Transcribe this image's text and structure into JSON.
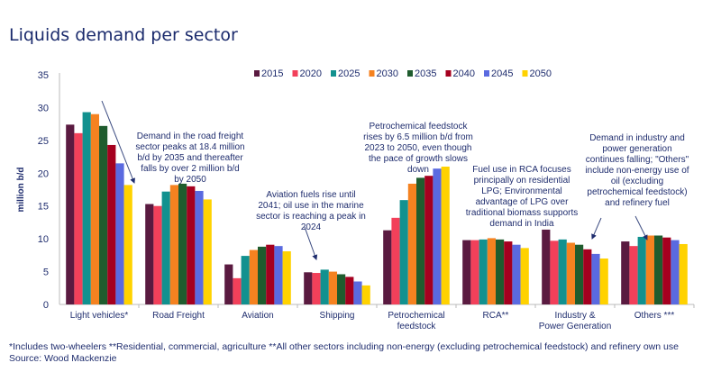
{
  "title": "Liquids demand per sector",
  "footnote": "*Includes two-wheelers **Residential, commercial, agriculture **All other sectors including non-energy (excluding petrochemical feedstock) and refinery own use",
  "source": "Source: Wood Mackenzie",
  "annotations": [
    "Demand in the road freight sector peaks at 18.4 million b/d by 2035 and thereafter falls by over 2 million b/d by 2050",
    "Aviation fuels rise until 2041; oil use in the marine sector is reaching a peak in 2024",
    "Petrochemical feedstock rises by 6.5 million b/d from 2023 to 2050, even though the pace of growth slows down",
    "Fuel use in RCA focuses principally on residential LPG; Environmental advantage of LPG over traditional biomass supports demand in India",
    "Demand in industry and power generation continues falling; \"Others\" include non-energy use of oil (excluding petrochemical feedstock) and refinery fuel"
  ],
  "chart_data": {
    "type": "bar",
    "title": "Liquids demand per sector",
    "ylabel": "million b/d",
    "xlabel": "",
    "ylim": [
      0,
      35
    ],
    "yticks": [
      0,
      5,
      10,
      15,
      20,
      25,
      30,
      35
    ],
    "grid": false,
    "legend": "top",
    "categories": [
      "Light vehicles*",
      "Road Freight",
      "Aviation",
      "Shipping",
      "Petrochemical feedstock",
      "RCA**",
      "Industry & Power Generation",
      "Others ***"
    ],
    "series": [
      {
        "name": "2015",
        "color": "#5a1a40",
        "values": [
          27.4,
          15.3,
          6.1,
          4.9,
          11.3,
          9.8,
          11.4,
          9.6
        ]
      },
      {
        "name": "2020",
        "color": "#f2405a",
        "values": [
          26.1,
          15.0,
          4.0,
          4.8,
          13.2,
          9.8,
          9.7,
          8.9
        ]
      },
      {
        "name": "2025",
        "color": "#12918f",
        "values": [
          29.3,
          17.2,
          7.4,
          5.3,
          15.9,
          9.9,
          9.9,
          10.3
        ]
      },
      {
        "name": "2030",
        "color": "#f58220",
        "values": [
          29.0,
          18.2,
          8.3,
          5.0,
          18.4,
          10.1,
          9.4,
          10.5
        ]
      },
      {
        "name": "2035",
        "color": "#1f5c2e",
        "values": [
          27.2,
          18.4,
          8.8,
          4.6,
          19.3,
          9.9,
          9.1,
          10.5
        ]
      },
      {
        "name": "2040",
        "color": "#a5001f",
        "values": [
          24.3,
          18.0,
          9.1,
          4.2,
          19.6,
          9.6,
          8.4,
          10.2
        ]
      },
      {
        "name": "2045",
        "color": "#5a6ae0",
        "values": [
          21.5,
          17.3,
          8.9,
          3.5,
          20.7,
          9.1,
          7.7,
          9.8
        ]
      },
      {
        "name": "2050",
        "color": "#ffd200",
        "values": [
          18.2,
          16.0,
          8.1,
          2.9,
          21.0,
          8.6,
          7.0,
          9.2
        ]
      }
    ]
  }
}
